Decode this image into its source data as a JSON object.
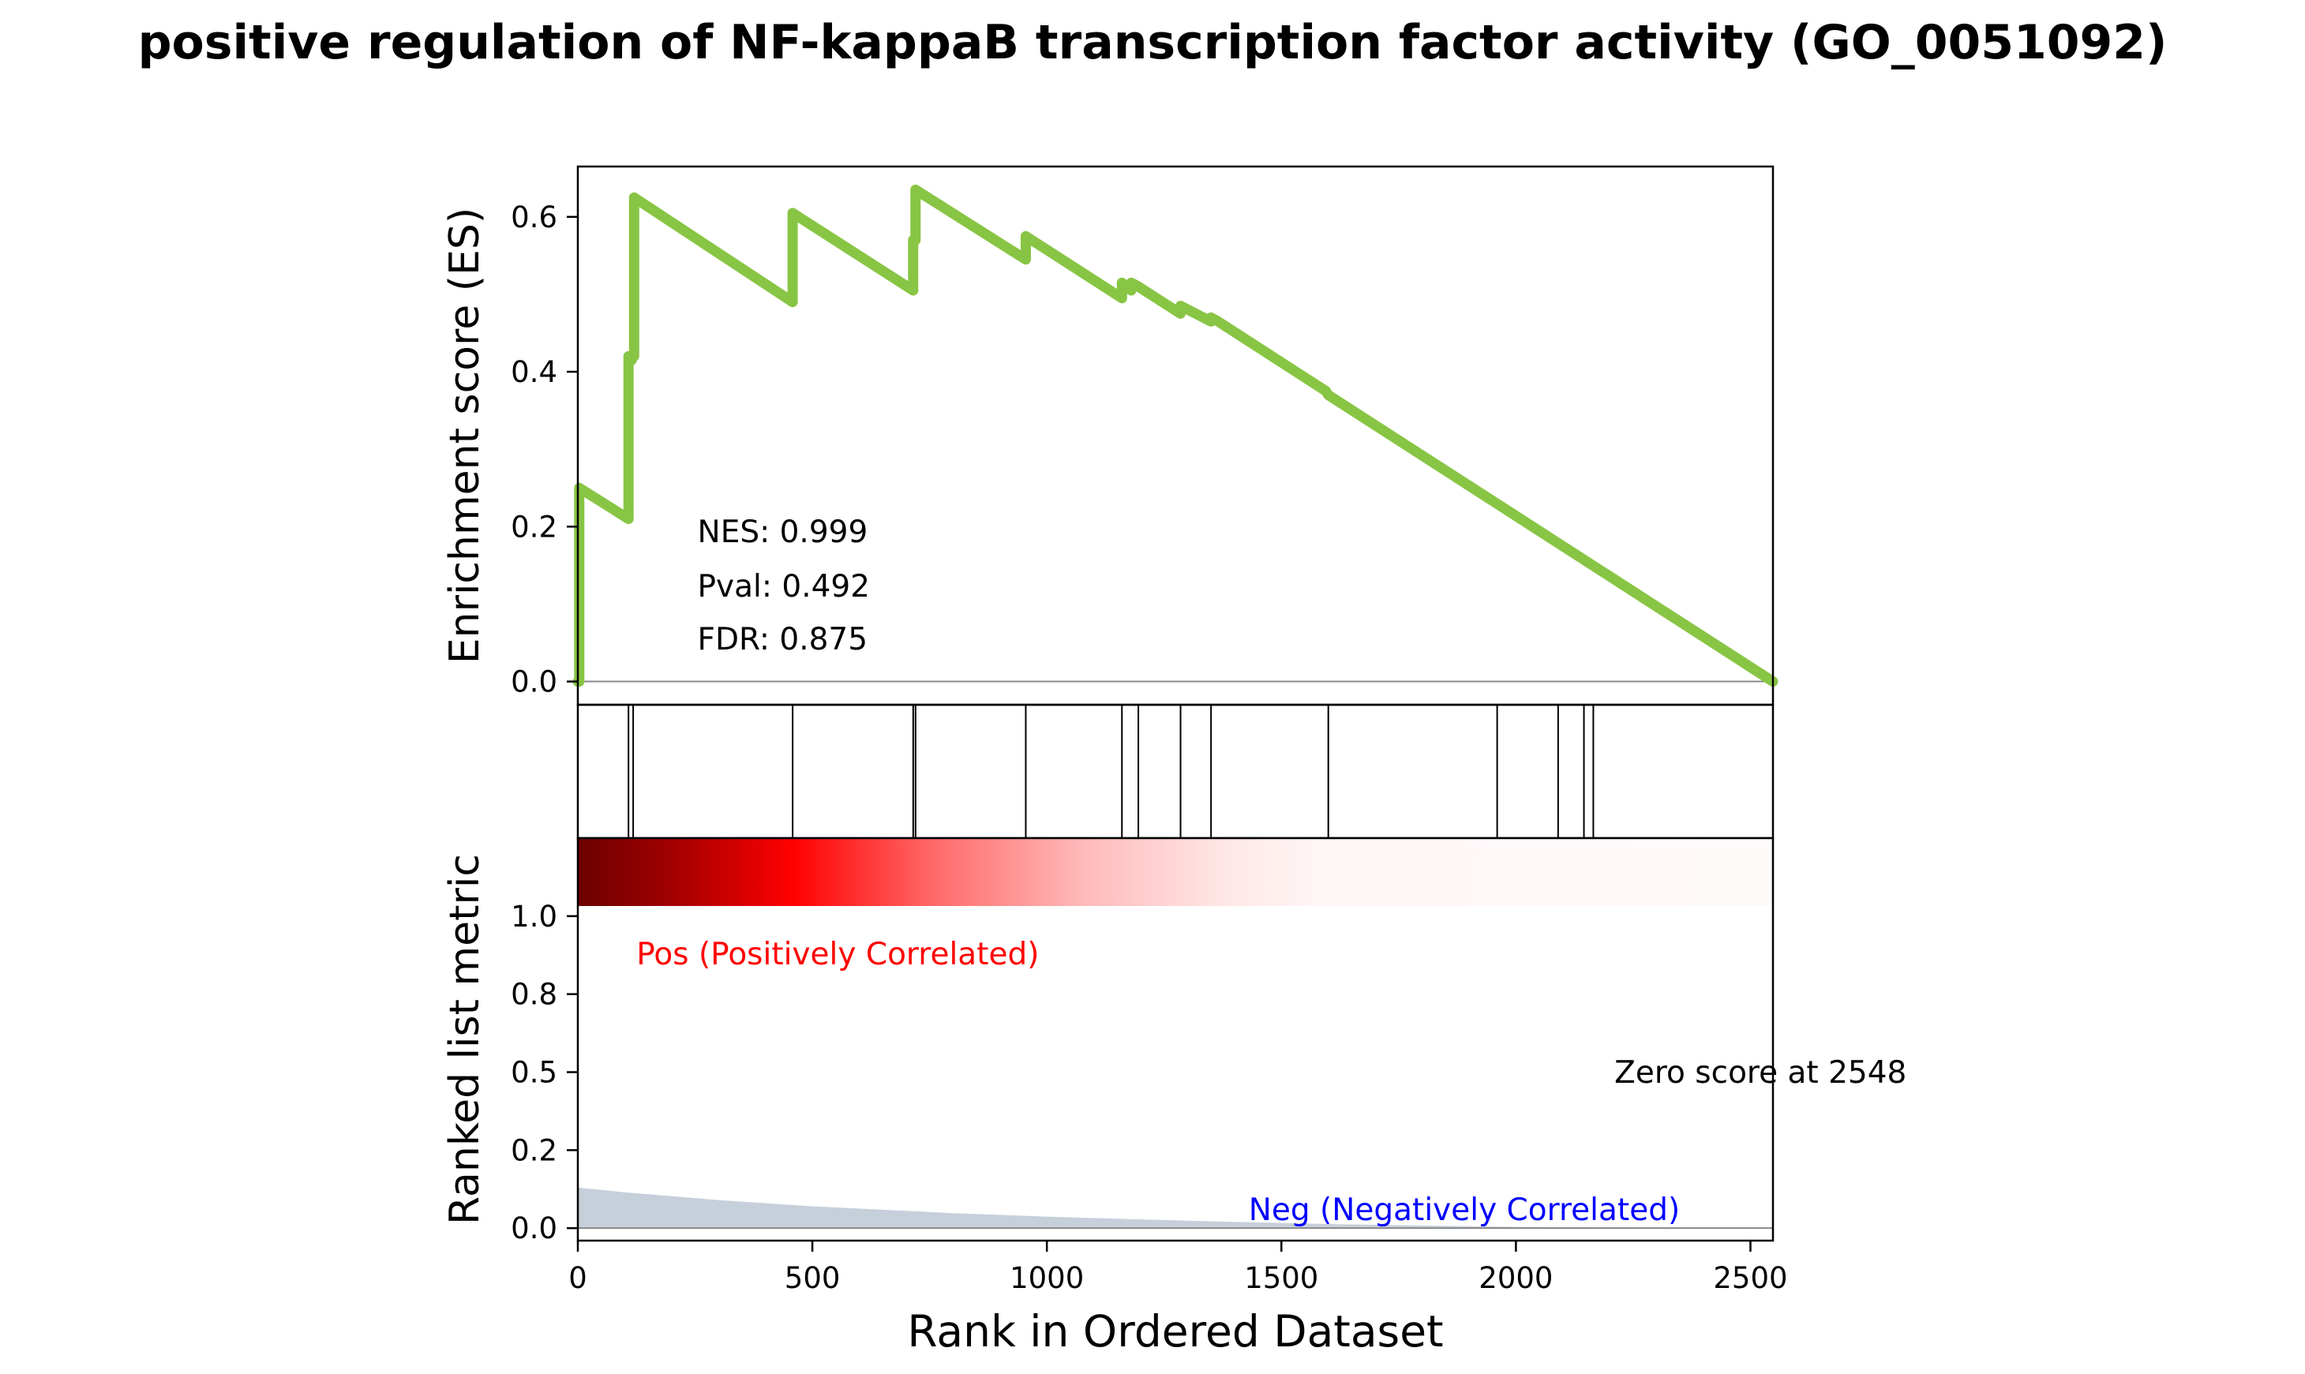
{
  "chart_data": {
    "title": "positive regulation of NF-kappaB transcription factor activity (GO_0051092)",
    "type": "line",
    "xlabel": "Rank in Ordered Dataset",
    "xlim": [
      0,
      2548
    ],
    "x_ticks": [
      0,
      500,
      1000,
      1500,
      2000,
      2500
    ],
    "es_panel": {
      "ylabel": "Enrichment score (ES)",
      "ylim": [
        -0.03,
        0.665
      ],
      "y_ticks": [
        0.0,
        0.2,
        0.4,
        0.6
      ],
      "y_tick_labels": [
        "0.0",
        "0.2",
        "0.4",
        "0.6"
      ],
      "line_color": "#88c544",
      "series": [
        {
          "x": [
            0,
            3,
            3,
            108,
            108,
            115,
            115,
            120,
            120,
            458,
            458,
            715,
            715,
            720,
            720,
            955,
            955,
            1160,
            1160,
            1180,
            1180,
            1195,
            1195,
            1285,
            1285,
            1350,
            1350,
            1365,
            1365,
            1595,
            1600,
            2548
          ],
          "y": [
            0.0,
            0.0,
            0.25,
            0.21,
            0.42,
            0.415,
            0.42,
            0.42,
            0.625,
            0.49,
            0.605,
            0.505,
            0.57,
            0.57,
            0.635,
            0.545,
            0.575,
            0.495,
            0.515,
            0.505,
            0.515,
            0.51,
            0.51,
            0.475,
            0.485,
            0.465,
            0.47,
            0.465,
            0.465,
            0.375,
            0.37,
            0.0
          ]
        }
      ],
      "stats": [
        "NES: 0.999",
        "Pval: 0.492",
        "FDR: 0.875"
      ]
    },
    "hits": [
      108,
      118,
      458,
      715,
      720,
      955,
      1160,
      1195,
      1285,
      1350,
      1600,
      1960,
      2090,
      2145,
      2165
    ],
    "rank_panel": {
      "ylabel": "Ranked list metric",
      "ylim": [
        -0.04,
        1.25
      ],
      "y_ticks": [
        0.0,
        0.25,
        0.5,
        0.75,
        1.0
      ],
      "y_tick_labels": [
        "0.0",
        "0.2",
        "0.5",
        "0.8",
        "1.0"
      ],
      "fill_color": "#c6d0da",
      "metric": {
        "x": [
          0,
          100,
          300,
          500,
          800,
          1000,
          1200,
          1400,
          1600,
          2000,
          2548
        ],
        "y": [
          0.13,
          0.115,
          0.09,
          0.07,
          0.048,
          0.037,
          0.028,
          0.02,
          0.013,
          0.004,
          0.0
        ]
      },
      "pos_label": "Pos (Positively Correlated)",
      "neg_label": "Neg (Negatively Correlated)",
      "zero_label": "Zero score at 2548",
      "pos_color": "#ff0000",
      "neg_color": "#0000ff"
    }
  }
}
